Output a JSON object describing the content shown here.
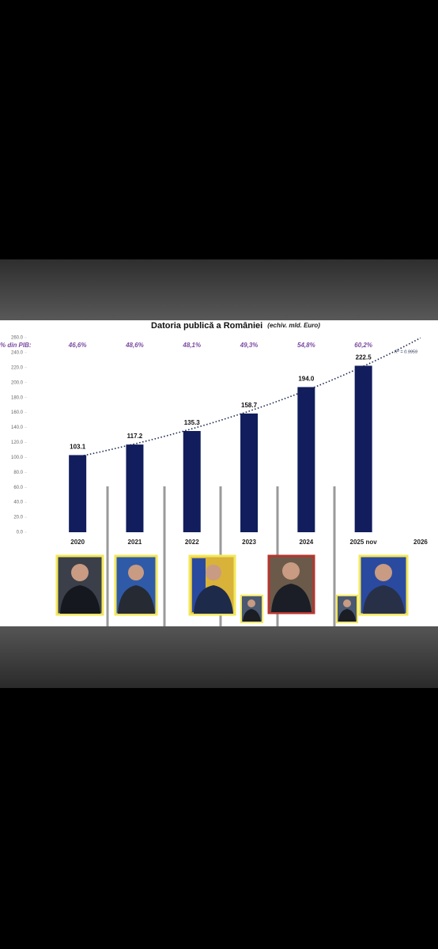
{
  "chart_data": {
    "type": "bar",
    "title": "Datoria publică a României",
    "subtitle": "(echiv. mld. Euro)",
    "categories": [
      "2020",
      "2021",
      "2022",
      "2023",
      "2024",
      "2025 nov",
      "2026"
    ],
    "values": [
      103.1,
      117.2,
      135.3,
      158.7,
      194.0,
      222.5,
      null
    ],
    "value_labels": [
      "103.1",
      "117.2",
      "135.3",
      "158.7",
      "194.0",
      "222.5",
      null
    ],
    "color": "#111d5c",
    "ylim": [
      0,
      260
    ],
    "yticks": [
      {
        "value": 0,
        "label": "0.0"
      },
      {
        "value": 20,
        "label": "20.0"
      },
      {
        "value": 40,
        "label": "40.0"
      },
      {
        "value": 60,
        "label": "60.0"
      },
      {
        "value": 80,
        "label": "80.0"
      },
      {
        "value": 100,
        "label": "100.0"
      },
      {
        "value": 120,
        "label": "120.0"
      },
      {
        "value": 140,
        "label": "140.0"
      },
      {
        "value": 160,
        "label": "160.0"
      },
      {
        "value": 180,
        "label": "180.0"
      },
      {
        "value": 200,
        "label": "200.0"
      },
      {
        "value": 220,
        "label": "220.0"
      },
      {
        "value": 240,
        "label": "240.0"
      },
      {
        "value": 260,
        "label": "260.0"
      }
    ],
    "pib_label": "% din PIB:",
    "pib_values": [
      "46,6%",
      "48,6%",
      "48,1%",
      "49,3%",
      "54,8%",
      "60,2%"
    ],
    "trendline_label": "R² = 0.9959"
  }
}
